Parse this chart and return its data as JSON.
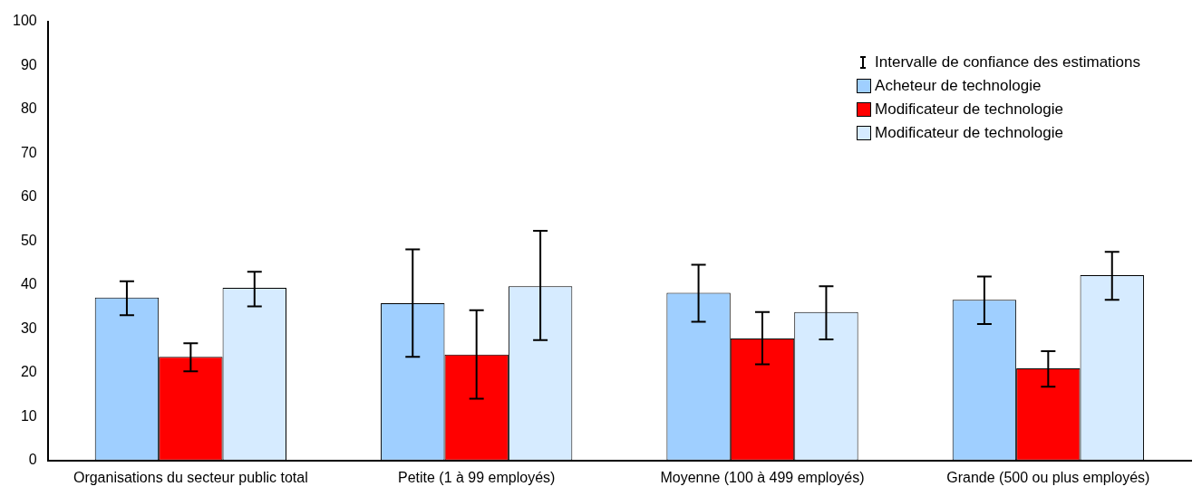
{
  "chart_data": {
    "type": "bar",
    "categories": [
      "Organisations du secteur public total",
      "Petite (1 à 99 employés)",
      "Moyenne (100 à 499 employés)",
      "Grande (500 ou plus employés)"
    ],
    "series": [
      {
        "name": "Acheteur de technologie",
        "color": "#9fcfff",
        "values": [
          37.1,
          35.8,
          38.2,
          36.6
        ],
        "errors": [
          [
            33.1,
            40.8
          ],
          [
            23.6,
            48.1
          ],
          [
            31.6,
            44.6
          ],
          [
            31.1,
            41.9
          ]
        ]
      },
      {
        "name": "Modificateur de technologie",
        "color": "#ff0000",
        "values": [
          23.6,
          24.1,
          27.8,
          21.0
        ],
        "errors": [
          [
            20.3,
            26.7
          ],
          [
            14.1,
            34.2
          ],
          [
            21.9,
            33.8
          ],
          [
            16.8,
            24.9
          ]
        ]
      },
      {
        "name": "Modificateur de technologie",
        "color": "#d6ebff",
        "values": [
          39.3,
          39.7,
          33.8,
          42.2
        ],
        "errors": [
          [
            35.1,
            43.0
          ],
          [
            27.4,
            52.3
          ],
          [
            27.6,
            39.7
          ],
          [
            36.6,
            47.5
          ]
        ]
      }
    ],
    "annotations": [
      "Intervalle de confiance des estimations"
    ],
    "ylim": [
      0,
      100
    ],
    "yticks": [
      0,
      10,
      20,
      30,
      40,
      50,
      60,
      70,
      80,
      90,
      100
    ],
    "grid": false,
    "legend": "top right"
  }
}
